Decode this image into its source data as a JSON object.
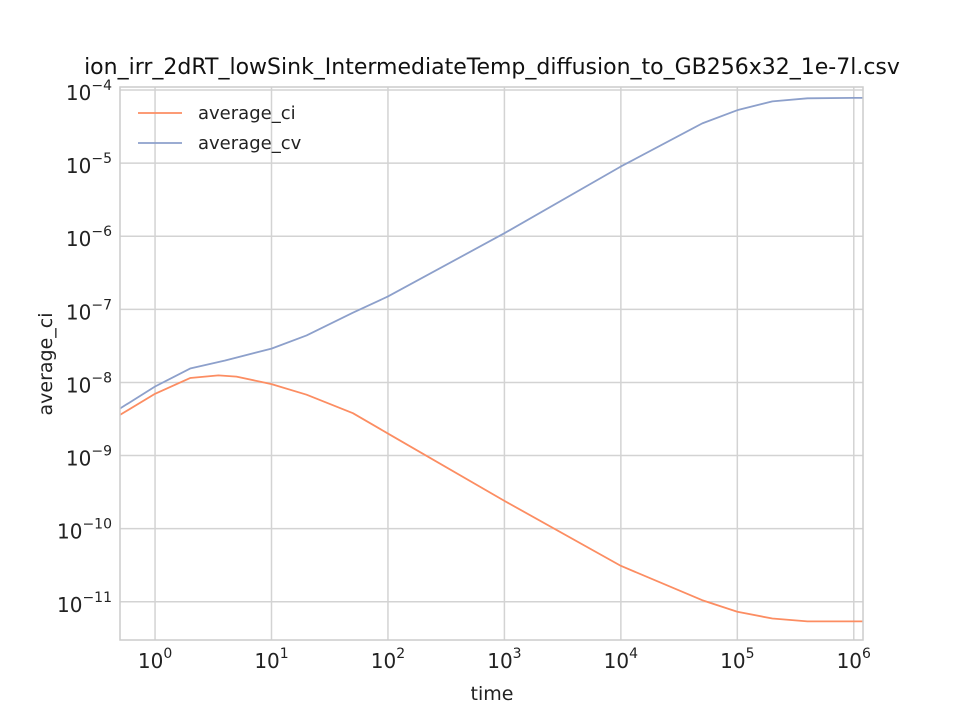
{
  "chart_data": {
    "type": "line",
    "title": "ion_irr_2dRT_lowSink_IntermediateTemp_diffusion_to_GB256x32_1e-7l.csv",
    "xlabel": "time",
    "ylabel": "average_ci",
    "xscale": "log",
    "yscale": "log",
    "xlim": [
      0.5,
      1200000
    ],
    "ylim": [
      3e-12,
      0.00011
    ],
    "grid": true,
    "legend_position": "top-left",
    "x_ticks": [
      {
        "base": "10",
        "exp": "0"
      },
      {
        "base": "10",
        "exp": "1"
      },
      {
        "base": "10",
        "exp": "2"
      },
      {
        "base": "10",
        "exp": "3"
      },
      {
        "base": "10",
        "exp": "4"
      },
      {
        "base": "10",
        "exp": "5"
      },
      {
        "base": "10",
        "exp": "6"
      }
    ],
    "y_ticks": [
      {
        "base": "10",
        "exp": "−11"
      },
      {
        "base": "10",
        "exp": "−10"
      },
      {
        "base": "10",
        "exp": "−9"
      },
      {
        "base": "10",
        "exp": "−8"
      },
      {
        "base": "10",
        "exp": "−7"
      },
      {
        "base": "10",
        "exp": "−6"
      },
      {
        "base": "10",
        "exp": "−5"
      },
      {
        "base": "10",
        "exp": "−4"
      }
    ],
    "series": [
      {
        "name": "average_ci",
        "color": "#fc8d62",
        "points": [
          [
            0.5,
            3.6e-09
          ],
          [
            1,
            7e-09
          ],
          [
            2,
            1.15e-08
          ],
          [
            3.5,
            1.25e-08
          ],
          [
            5,
            1.2e-08
          ],
          [
            10,
            9.5e-09
          ],
          [
            20,
            6.8e-09
          ],
          [
            50,
            3.8e-09
          ],
          [
            100,
            2e-09
          ],
          [
            1000,
            2.4e-10
          ],
          [
            10000,
            3.1e-11
          ],
          [
            50000,
            1.05e-11
          ],
          [
            100000,
            7.3e-12
          ],
          [
            200000,
            5.9e-12
          ],
          [
            400000,
            5.4e-12
          ],
          [
            1000000,
            5.4e-12
          ],
          [
            1200000,
            5.4e-12
          ]
        ]
      },
      {
        "name": "average_cv",
        "color": "#8da0cb",
        "points": [
          [
            0.5,
            4.4e-09
          ],
          [
            1,
            8.8e-09
          ],
          [
            2,
            1.55e-08
          ],
          [
            4,
            2e-08
          ],
          [
            10,
            2.9e-08
          ],
          [
            20,
            4.4e-08
          ],
          [
            50,
            9e-08
          ],
          [
            100,
            1.5e-07
          ],
          [
            1000,
            1.1e-06
          ],
          [
            10000,
            9e-06
          ],
          [
            50000,
            3.5e-05
          ],
          [
            100000,
            5.3e-05
          ],
          [
            200000,
            7e-05
          ],
          [
            400000,
            7.7e-05
          ],
          [
            1000000,
            7.8e-05
          ],
          [
            1200000,
            7.8e-05
          ]
        ]
      }
    ]
  }
}
